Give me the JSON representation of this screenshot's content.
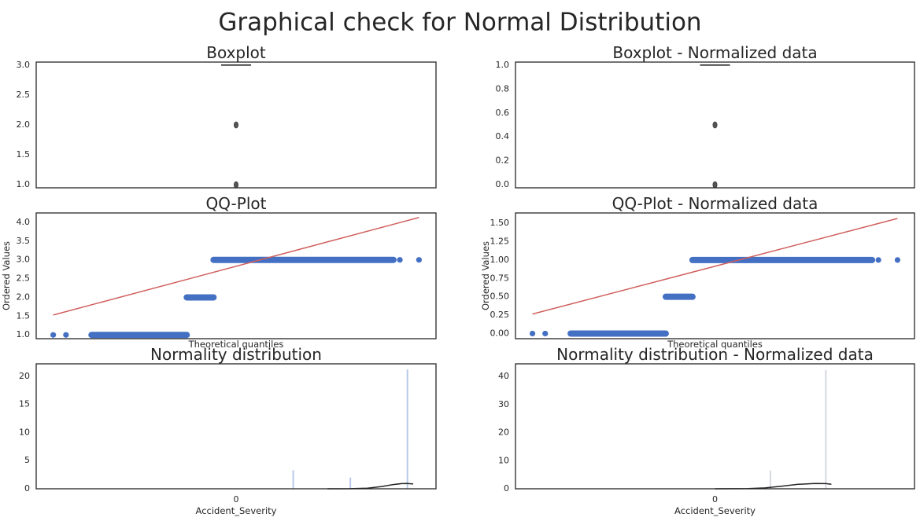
{
  "suptitle": "Graphical check for Normal Distribution",
  "colors": {
    "frame": "#262626",
    "points": "#4470c4",
    "qqline": "#d0605e",
    "kde": "#262626",
    "hist": "#b8c9ea",
    "hist_norm": "#d6d9e2"
  },
  "chart_data": [
    {
      "type": "box",
      "title": "Boxplot",
      "ylim": [
        0.95,
        3.05
      ],
      "yticks": [
        "1.0",
        "1.5",
        "2.0",
        "2.5",
        "3.0"
      ],
      "box": {
        "q1": 3.0,
        "median": 3.0,
        "q3": 3.0,
        "whisker_low": 3.0,
        "whisker_high": 3.0
      },
      "outliers": [
        1.0,
        2.0
      ]
    },
    {
      "type": "box",
      "title": "Boxplot - Normalized data",
      "ylim": [
        -0.025,
        1.025
      ],
      "yticks": [
        "0.0",
        "0.2",
        "0.4",
        "0.6",
        "0.8",
        "1.0"
      ],
      "box": {
        "q1": 1.0,
        "median": 1.0,
        "q3": 1.0,
        "whisker_low": 1.0,
        "whisker_high": 1.0
      },
      "outliers": [
        0.0,
        0.5
      ]
    },
    {
      "type": "scatter",
      "title": "QQ-Plot",
      "xlabel": "Theoretical quantiles",
      "ylabel": "Ordered Values",
      "xlim": [
        -4.7,
        4.7
      ],
      "ylim": [
        0.9,
        4.25
      ],
      "yticks": [
        "1.0",
        "1.5",
        "2.0",
        "2.5",
        "3.0",
        "3.5",
        "4.0"
      ],
      "segments": [
        {
          "y": 1.0,
          "x": [
            -3.4,
            -1.16
          ]
        },
        {
          "y": 2.0,
          "x": [
            -1.16,
            -0.53
          ]
        },
        {
          "y": 3.0,
          "x": [
            -0.53,
            3.7
          ]
        }
      ],
      "extreme_points": [
        {
          "x": -4.3,
          "y": 1.0
        },
        {
          "x": -4.0,
          "y": 1.0
        },
        {
          "x": 3.85,
          "y": 3.0
        },
        {
          "x": 4.3,
          "y": 3.0
        }
      ],
      "fit_line": {
        "x": [
          -4.3,
          4.3
        ],
        "y": [
          1.53,
          4.13
        ]
      }
    },
    {
      "type": "scatter",
      "title": "QQ-Plot - Normalized data",
      "xlabel": "Theoretical quantiles",
      "ylabel": "Ordered Values",
      "xlim": [
        -4.7,
        4.7
      ],
      "ylim": [
        -0.07,
        1.64
      ],
      "yticks": [
        "0.00",
        "0.25",
        "0.50",
        "0.75",
        "1.00",
        "1.25",
        "1.50"
      ],
      "segments": [
        {
          "y": 0.0,
          "x": [
            -3.4,
            -1.16
          ]
        },
        {
          "y": 0.5,
          "x": [
            -1.16,
            -0.53
          ]
        },
        {
          "y": 1.0,
          "x": [
            -0.53,
            3.7
          ]
        }
      ],
      "extreme_points": [
        {
          "x": -4.3,
          "y": 0.0
        },
        {
          "x": -4.0,
          "y": 0.0
        },
        {
          "x": 3.85,
          "y": 1.0
        },
        {
          "x": 4.3,
          "y": 1.0
        }
      ],
      "fit_line": {
        "x": [
          -4.3,
          4.3
        ],
        "y": [
          0.265,
          1.565
        ]
      }
    },
    {
      "type": "histogram",
      "title": "Normality distribution",
      "xlabel": "Accident_Severity",
      "xtick": "0",
      "xlim": [
        -3.5,
        3.5
      ],
      "ylim": [
        0,
        22.2
      ],
      "yticks": [
        0,
        5,
        10,
        15,
        20
      ],
      "bars": [
        {
          "x": 1.0,
          "height": 3.3
        },
        {
          "x": 2.0,
          "height": 2.0
        },
        {
          "x": 3.0,
          "height": 21.2
        }
      ],
      "kde": [
        [
          1.6,
          0.0
        ],
        [
          2.0,
          0.02
        ],
        [
          2.3,
          0.1
        ],
        [
          2.55,
          0.4
        ],
        [
          2.75,
          0.75
        ],
        [
          2.9,
          0.92
        ],
        [
          3.0,
          0.95
        ],
        [
          3.1,
          0.85
        ]
      ]
    },
    {
      "type": "histogram",
      "title": "Normality distribution - Normalized data",
      "xlabel": "Accident_Severity",
      "xtick": "0",
      "xlim": [
        -1.8,
        1.8
      ],
      "ylim": [
        0,
        44.5
      ],
      "yticks": [
        0,
        10,
        20,
        30,
        40
      ],
      "bars": [
        {
          "x": 0.0,
          "height": 0.0
        },
        {
          "x": 0.5,
          "height": 6.5
        },
        {
          "x": 1.0,
          "height": 42.3
        }
      ],
      "kde": [
        [
          0.0,
          0.0
        ],
        [
          0.3,
          0.05
        ],
        [
          0.45,
          0.3
        ],
        [
          0.6,
          0.9
        ],
        [
          0.75,
          1.6
        ],
        [
          0.9,
          1.9
        ],
        [
          1.0,
          1.85
        ],
        [
          1.05,
          1.6
        ]
      ]
    }
  ]
}
